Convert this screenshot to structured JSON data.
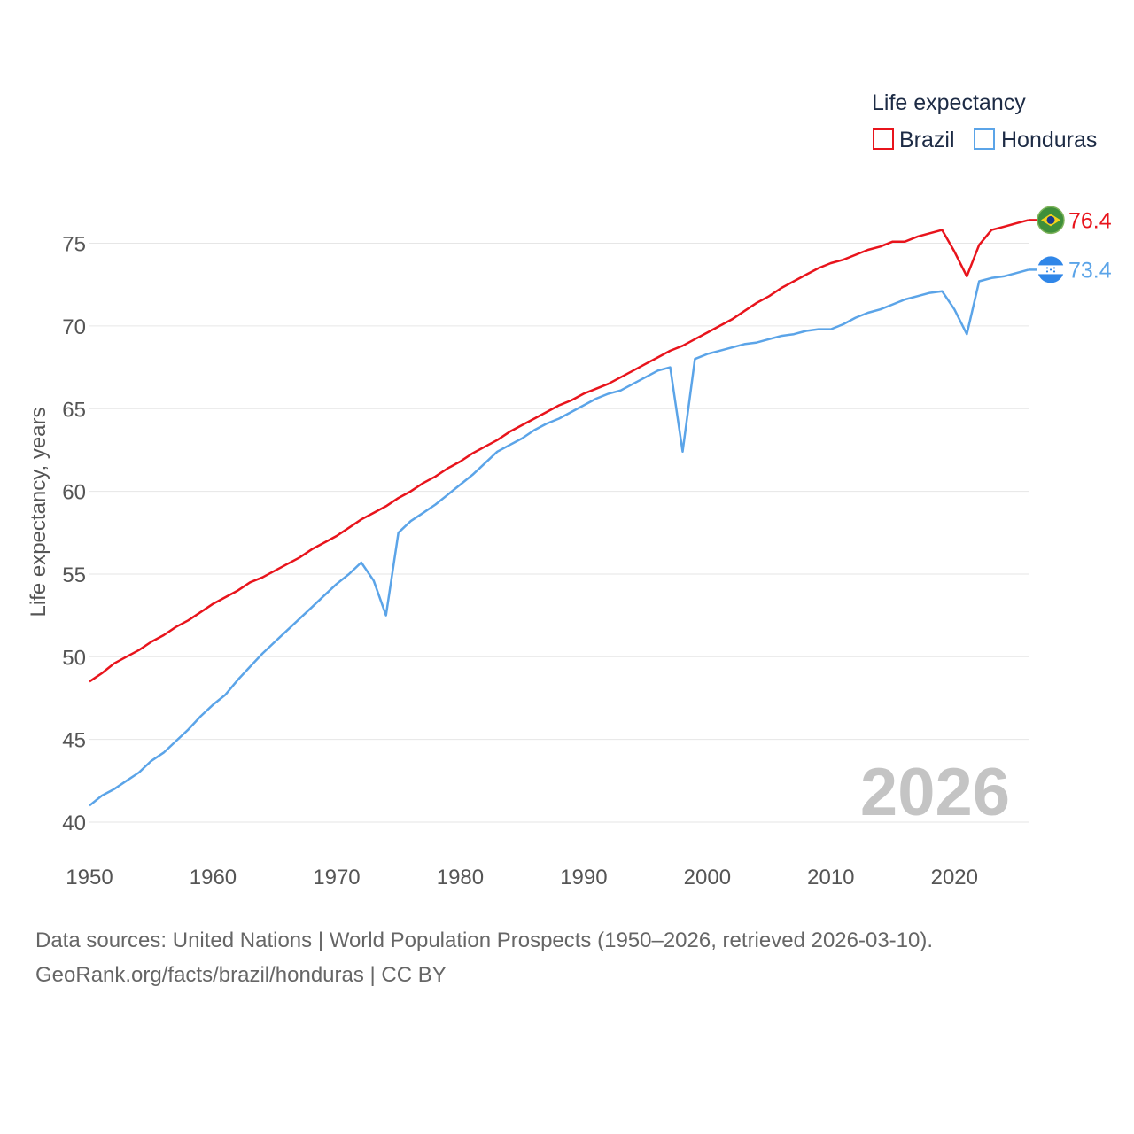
{
  "chart_data": {
    "type": "line",
    "legend_title": "Life expectancy",
    "ylabel": "Life expectancy, years",
    "xlim": [
      1950,
      2026
    ],
    "ylim": [
      40,
      78
    ],
    "yticks": [
      40,
      45,
      50,
      55,
      60,
      65,
      70,
      75
    ],
    "xticks": [
      1950,
      1960,
      1970,
      1980,
      1990,
      2000,
      2010,
      2020
    ],
    "current_year": "2026",
    "x": [
      1950,
      1951,
      1952,
      1953,
      1954,
      1955,
      1956,
      1957,
      1958,
      1959,
      1960,
      1961,
      1962,
      1963,
      1964,
      1965,
      1966,
      1967,
      1968,
      1969,
      1970,
      1971,
      1972,
      1973,
      1974,
      1975,
      1976,
      1977,
      1978,
      1979,
      1980,
      1981,
      1982,
      1983,
      1984,
      1985,
      1986,
      1987,
      1988,
      1989,
      1990,
      1991,
      1992,
      1993,
      1994,
      1995,
      1996,
      1997,
      1998,
      1999,
      2000,
      2001,
      2002,
      2003,
      2004,
      2005,
      2006,
      2007,
      2008,
      2009,
      2010,
      2011,
      2012,
      2013,
      2014,
      2015,
      2016,
      2017,
      2018,
      2019,
      2020,
      2021,
      2022,
      2023,
      2024,
      2025,
      2026
    ],
    "series": [
      {
        "name": "Brazil",
        "color": "#e8141c",
        "end_label": "76.4",
        "flag_icon": "brazil-flag-icon",
        "values": [
          48.5,
          49.0,
          49.6,
          50.0,
          50.4,
          50.9,
          51.3,
          51.8,
          52.2,
          52.7,
          53.2,
          53.6,
          54.0,
          54.5,
          54.8,
          55.2,
          55.6,
          56.0,
          56.5,
          56.9,
          57.3,
          57.8,
          58.3,
          58.7,
          59.1,
          59.6,
          60.0,
          60.5,
          60.9,
          61.4,
          61.8,
          62.3,
          62.7,
          63.1,
          63.6,
          64.0,
          64.4,
          64.8,
          65.2,
          65.5,
          65.9,
          66.2,
          66.5,
          66.9,
          67.3,
          67.7,
          68.1,
          68.5,
          68.8,
          69.2,
          69.6,
          70.0,
          70.4,
          70.9,
          71.4,
          71.8,
          72.3,
          72.7,
          73.1,
          73.5,
          73.8,
          74.0,
          74.3,
          74.6,
          74.8,
          75.1,
          75.1,
          75.4,
          75.6,
          75.8,
          74.5,
          73.0,
          74.9,
          75.8,
          76.0,
          76.2,
          76.4
        ]
      },
      {
        "name": "Honduras",
        "color": "#5ba4e8",
        "end_label": "73.4",
        "flag_icon": "honduras-flag-icon",
        "values": [
          41.0,
          41.6,
          42.0,
          42.5,
          43.0,
          43.7,
          44.2,
          44.9,
          45.6,
          46.4,
          47.1,
          47.7,
          48.6,
          49.4,
          50.2,
          50.9,
          51.6,
          52.3,
          53.0,
          53.7,
          54.4,
          55.0,
          55.7,
          54.6,
          52.5,
          57.5,
          58.2,
          58.7,
          59.2,
          59.8,
          60.4,
          61.0,
          61.7,
          62.4,
          62.8,
          63.2,
          63.7,
          64.1,
          64.4,
          64.8,
          65.2,
          65.6,
          65.9,
          66.1,
          66.5,
          66.9,
          67.3,
          67.5,
          62.4,
          68.0,
          68.3,
          68.5,
          68.7,
          68.9,
          69.0,
          69.2,
          69.4,
          69.5,
          69.7,
          69.8,
          69.8,
          70.1,
          70.5,
          70.8,
          71.0,
          71.3,
          71.6,
          71.8,
          72.0,
          72.1,
          71.0,
          69.5,
          72.7,
          72.9,
          73.0,
          73.2,
          73.4
        ]
      }
    ]
  },
  "footer": {
    "line1": "Data sources: United Nations | World Population Prospects (1950–2026, retrieved 2026-03-10).",
    "line2": "GeoRank.org/facts/brazil/honduras | CC BY"
  }
}
